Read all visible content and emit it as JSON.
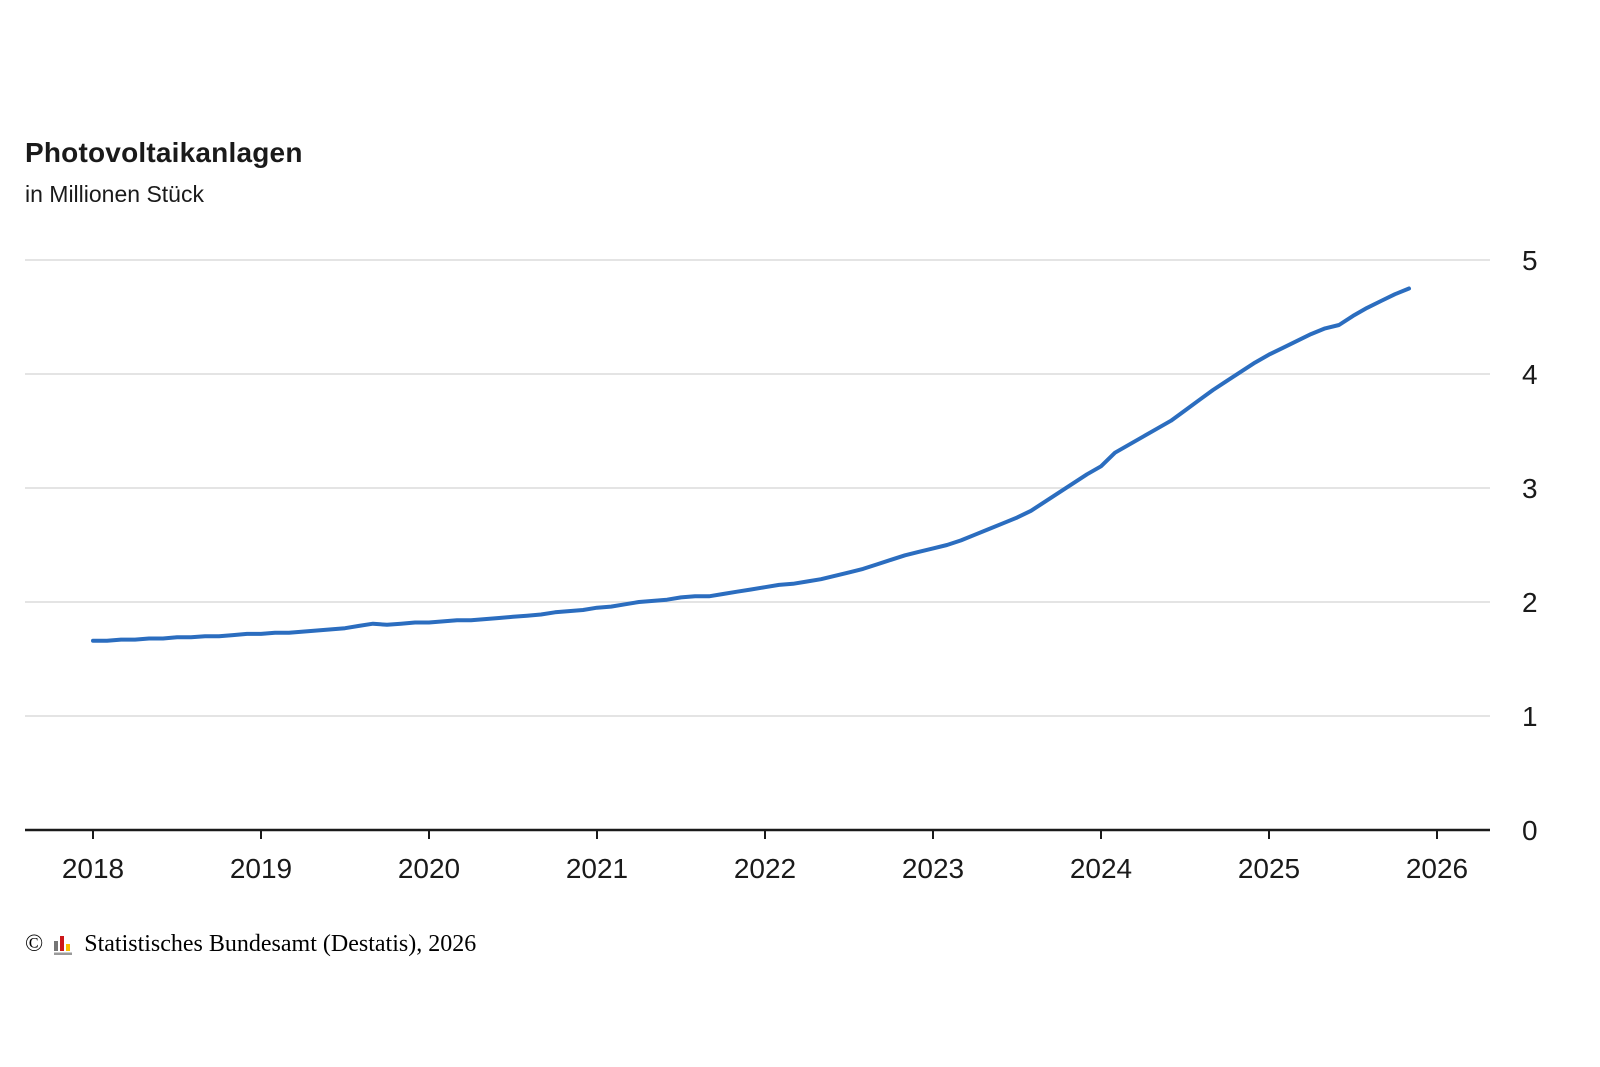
{
  "header": {
    "title": "Photovoltaikanlagen",
    "subtitle": "in Millionen Stück"
  },
  "footer": {
    "copyright": "©",
    "source": "Statistisches Bundesamt (Destatis), 2026",
    "logo_colors": [
      "#757575",
      "#cc1719",
      "#f7bf00",
      "#9a9a9a"
    ]
  },
  "chart_data": {
    "type": "line",
    "title": "Photovoltaikanlagen",
    "subtitle": "in Millionen Stück",
    "xlabel": "",
    "ylabel": "in Millionen Stück",
    "x_ticks": [
      2018,
      2019,
      2020,
      2021,
      2022,
      2023,
      2024,
      2025,
      2026
    ],
    "y_ticks": [
      0,
      1,
      2,
      3,
      4,
      5
    ],
    "ylim": [
      0,
      5
    ],
    "grid": "horizontal",
    "y_axis_side": "right",
    "legend": "none",
    "line_color": "#2b6dbf",
    "grid_color": "#dcdcdc",
    "axis_color": "#1a1a1a",
    "series": [
      {
        "name": "Photovoltaikanlagen",
        "start_year": 2018,
        "interval": "monthly",
        "values": [
          1.66,
          1.66,
          1.67,
          1.67,
          1.68,
          1.68,
          1.69,
          1.69,
          1.7,
          1.7,
          1.71,
          1.72,
          1.72,
          1.73,
          1.73,
          1.74,
          1.75,
          1.76,
          1.77,
          1.79,
          1.81,
          1.8,
          1.81,
          1.82,
          1.82,
          1.83,
          1.84,
          1.84,
          1.85,
          1.86,
          1.87,
          1.88,
          1.89,
          1.91,
          1.92,
          1.93,
          1.95,
          1.96,
          1.98,
          2.0,
          2.01,
          2.02,
          2.04,
          2.05,
          2.05,
          2.07,
          2.09,
          2.11,
          2.13,
          2.15,
          2.16,
          2.18,
          2.2,
          2.23,
          2.26,
          2.29,
          2.33,
          2.37,
          2.41,
          2.44,
          2.47,
          2.5,
          2.54,
          2.59,
          2.64,
          2.69,
          2.74,
          2.8,
          2.88,
          2.96,
          3.04,
          3.12,
          3.19,
          3.31,
          3.38,
          3.45,
          3.52,
          3.59,
          3.68,
          3.77,
          3.86,
          3.94,
          4.02,
          4.1,
          4.17,
          4.23,
          4.29,
          4.35,
          4.4,
          4.43,
          4.51,
          4.58,
          4.64,
          4.7,
          4.75
        ]
      }
    ]
  }
}
